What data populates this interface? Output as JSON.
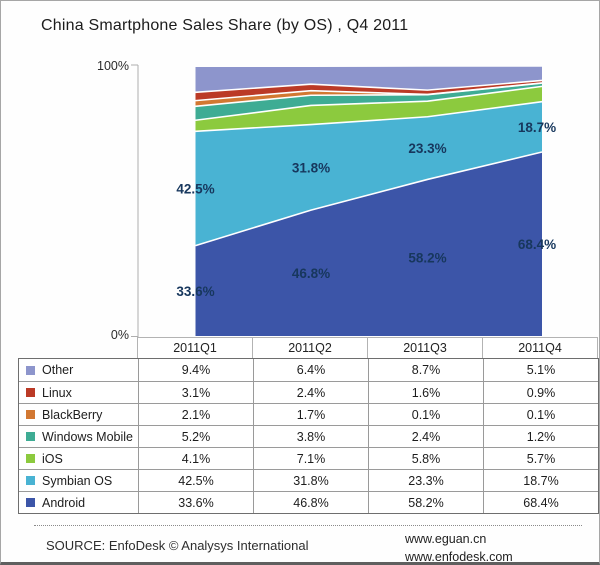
{
  "title": "China Smartphone Sales Share (by OS) , Q4 2011",
  "y_axis": {
    "top_label": "100%",
    "bottom_label": "0%"
  },
  "chart_data": {
    "type": "area",
    "stacked": true,
    "title": "China Smartphone Sales Share (by OS) , Q4 2011",
    "categories": [
      "2011Q1",
      "2011Q2",
      "2011Q3",
      "2011Q4"
    ],
    "series": [
      {
        "name": "Android",
        "values": [
          33.6,
          46.8,
          58.2,
          68.4
        ],
        "color": "#3c55a8",
        "labeled": true
      },
      {
        "name": "Symbian OS",
        "values": [
          42.5,
          31.8,
          23.3,
          18.7
        ],
        "color": "#49b3d3",
        "labeled": true
      },
      {
        "name": "iOS",
        "values": [
          4.1,
          7.1,
          5.8,
          5.7
        ],
        "color": "#8cca3e",
        "labeled": false
      },
      {
        "name": "Windows Mobile",
        "values": [
          5.2,
          3.8,
          2.4,
          1.2
        ],
        "color": "#3eac94",
        "labeled": false
      },
      {
        "name": "BlackBerry",
        "values": [
          2.1,
          1.7,
          0.1,
          0.1
        ],
        "color": "#d27832",
        "labeled": false
      },
      {
        "name": "Linux",
        "values": [
          3.1,
          2.4,
          1.6,
          0.9
        ],
        "color": "#bb3a26",
        "labeled": false
      },
      {
        "name": "Other",
        "values": [
          9.4,
          6.4,
          8.7,
          5.1
        ],
        "color": "#8d95cc",
        "labeled": false
      }
    ],
    "ylim": [
      0,
      100
    ],
    "y_tick_labels": [
      "0%",
      "100%"
    ],
    "grid": false,
    "legend_position": "table-below",
    "data_label_color": "#17375d",
    "band_separator_color": "#ffffff"
  },
  "table": {
    "rows": [
      {
        "name": "Other",
        "color": "#8d95cc",
        "values": [
          "9.4%",
          "6.4%",
          "8.7%",
          "5.1%"
        ]
      },
      {
        "name": "Linux",
        "color": "#bb3a26",
        "values": [
          "3.1%",
          "2.4%",
          "1.6%",
          "0.9%"
        ]
      },
      {
        "name": "BlackBerry",
        "color": "#d27832",
        "values": [
          "2.1%",
          "1.7%",
          "0.1%",
          "0.1%"
        ]
      },
      {
        "name": "Windows Mobile",
        "color": "#3eac94",
        "values": [
          "5.2%",
          "3.8%",
          "2.4%",
          "1.2%"
        ]
      },
      {
        "name": "iOS",
        "color": "#8cca3e",
        "values": [
          "4.1%",
          "7.1%",
          "5.8%",
          "5.7%"
        ]
      },
      {
        "name": "Symbian OS",
        "color": "#49b3d3",
        "values": [
          "42.5%",
          "31.8%",
          "23.3%",
          "18.7%"
        ]
      },
      {
        "name": "Android",
        "color": "#3c55a8",
        "values": [
          "33.6%",
          "46.8%",
          "58.2%",
          "68.4%"
        ]
      }
    ]
  },
  "footer": {
    "source": "SOURCE: EnfoDesk © Analysys International",
    "url_line1": "www.eguan.cn",
    "url_line2": "www.enfodesk.com"
  }
}
